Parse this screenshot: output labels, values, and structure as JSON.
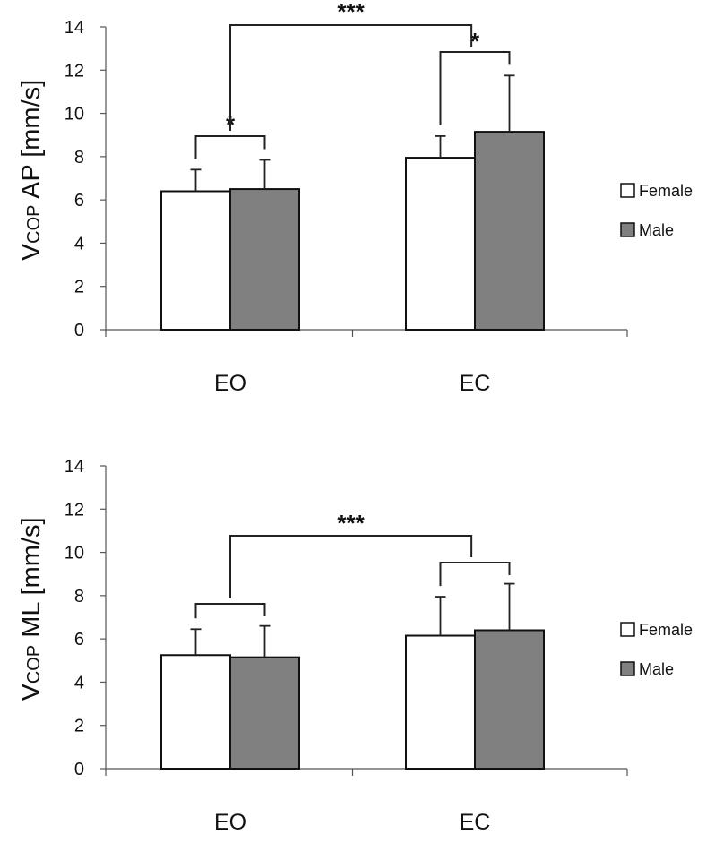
{
  "chart_data": [
    {
      "type": "bar",
      "ylabel_main": "V",
      "ylabel_sub": "COP",
      "ylabel_rest": " AP [mm/s]",
      "ylim": [
        0,
        14
      ],
      "yticks": [
        "0",
        "2",
        "4",
        "6",
        "8",
        "10",
        "12",
        "14"
      ],
      "categories": [
        "EO",
        "EC"
      ],
      "series": [
        {
          "name": "Female",
          "color": "#ffffff",
          "values": [
            6.4,
            7.95
          ],
          "errors": [
            1.0,
            1.0
          ]
        },
        {
          "name": "Male",
          "color": "#808080",
          "values": [
            6.5,
            9.15
          ],
          "errors": [
            1.35,
            2.6
          ]
        }
      ],
      "legend": "right",
      "significance": [
        {
          "label": "*",
          "between": "EO Female vs Male"
        },
        {
          "label": "*",
          "between": "EC Female vs Male"
        },
        {
          "label": "***",
          "between": "EO vs EC"
        }
      ]
    },
    {
      "type": "bar",
      "ylabel_main": "V",
      "ylabel_sub": "COP",
      "ylabel_rest": " ML [mm/s]",
      "ylim": [
        0,
        14
      ],
      "yticks": [
        "0",
        "2",
        "4",
        "6",
        "8",
        "10",
        "12",
        "14"
      ],
      "categories": [
        "EO",
        "EC"
      ],
      "series": [
        {
          "name": "Female",
          "color": "#ffffff",
          "values": [
            5.25,
            6.15
          ],
          "errors": [
            1.2,
            1.8
          ]
        },
        {
          "name": "Male",
          "color": "#808080",
          "values": [
            5.15,
            6.4
          ],
          "errors": [
            1.45,
            2.15
          ]
        }
      ],
      "legend": "right",
      "significance": [
        {
          "label": "",
          "between": "EO Female vs Male"
        },
        {
          "label": "",
          "between": "EC Female vs Male"
        },
        {
          "label": "***",
          "between": "EO vs EC"
        }
      ]
    }
  ]
}
